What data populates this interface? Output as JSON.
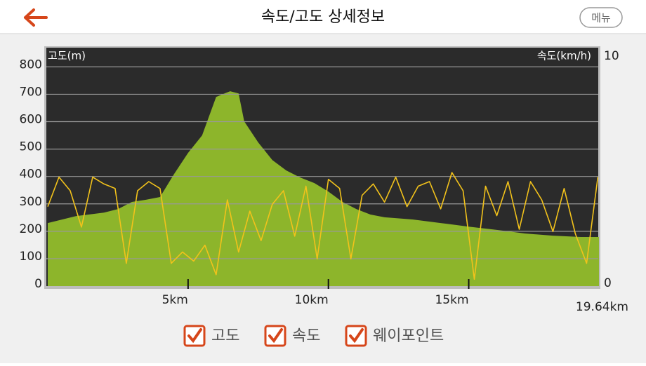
{
  "header": {
    "title": "속도/고도 상세정보",
    "menu": "메뉴"
  },
  "chart_data": {
    "type": "area",
    "y_label": "고도(m)",
    "y2_label": "속도(km/h)",
    "xlim": [
      0,
      19.64
    ],
    "xticks": [
      {
        "value": 5,
        "label": "5km"
      },
      {
        "value": 10,
        "label": "10km"
      },
      {
        "value": 15,
        "label": "15km"
      },
      {
        "value": 19.64,
        "label": "19.64km"
      }
    ],
    "ylim": [
      0,
      870
    ],
    "yticks": [
      0,
      100,
      200,
      300,
      400,
      500,
      600,
      700,
      800
    ],
    "y2lim": [
      0,
      10.5
    ],
    "y2ticks": [
      0,
      10
    ],
    "grid": true,
    "series": [
      {
        "name": "고도",
        "type": "area",
        "color": "#8db52b",
        "x": [
          0,
          1,
          2,
          2.5,
          3,
          3.5,
          4,
          4.5,
          5,
          5.5,
          6,
          6.3,
          6.5,
          6.8,
          7,
          7.5,
          8,
          8.5,
          9,
          9.5,
          10,
          10.5,
          11,
          11.5,
          12,
          13,
          14,
          15,
          16,
          17,
          18,
          19,
          19.64
        ],
        "values": [
          230,
          255,
          268,
          281,
          307,
          315,
          325,
          409,
          486,
          550,
          690,
          703,
          711,
          703,
          601,
          524,
          460,
          422,
          396,
          376,
          345,
          307,
          281,
          261,
          251,
          243,
          230,
          217,
          205,
          192,
          184,
          179,
          179
        ]
      },
      {
        "name": "속도",
        "type": "line",
        "axis": "y2",
        "color": "#f2c21b",
        "x": [
          0,
          0.4,
          0.8,
          1.2,
          1.6,
          2.0,
          2.4,
          2.8,
          3.2,
          3.6,
          4.0,
          4.4,
          4.8,
          5.2,
          5.6,
          6.0,
          6.4,
          6.8,
          7.2,
          7.6,
          8.0,
          8.4,
          8.8,
          9.2,
          9.6,
          10.0,
          10.4,
          10.8,
          11.2,
          11.6,
          12.0,
          12.4,
          12.8,
          13.2,
          13.6,
          14.0,
          14.4,
          14.8,
          15.2,
          15.6,
          16.0,
          16.4,
          16.8,
          17.2,
          17.6,
          18.0,
          18.4,
          18.8,
          19.2,
          19.6
        ],
        "values": [
          3.5,
          4.8,
          4.2,
          2.6,
          4.8,
          4.5,
          4.3,
          1.0,
          4.2,
          4.6,
          4.3,
          1.0,
          1.5,
          1.1,
          1.8,
          0.5,
          3.8,
          1.5,
          3.3,
          2.0,
          3.6,
          4.2,
          2.2,
          4.4,
          1.2,
          4.7,
          4.3,
          1.2,
          4.0,
          4.5,
          3.7,
          4.8,
          3.5,
          4.4,
          4.6,
          3.4,
          5.0,
          4.2,
          0.3,
          4.4,
          3.1,
          4.6,
          2.5,
          4.6,
          3.8,
          2.4,
          4.3,
          2.3,
          1.0,
          4.8
        ]
      }
    ],
    "waypoint_label": "웨이포인트"
  }
}
